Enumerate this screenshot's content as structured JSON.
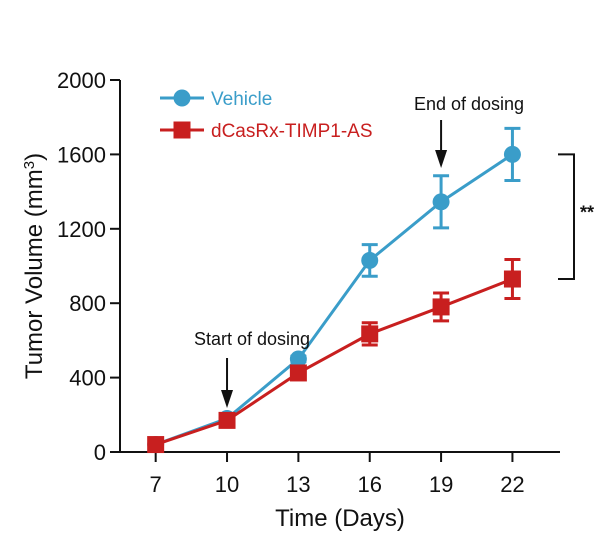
{
  "chart_data": {
    "type": "line",
    "xlabel": "Time (Days)",
    "ylabel": "Tumor Volume (mm",
    "ylabel_unit_sup": "3",
    "ylabel_close": ")",
    "x": [
      7,
      10,
      13,
      16,
      19,
      22
    ],
    "x_ticks": [
      "7",
      "10",
      "13",
      "16",
      "19",
      "22"
    ],
    "ylim": [
      0,
      2000
    ],
    "y_ticks": [
      "0",
      "400",
      "800",
      "1200",
      "1600",
      "2000"
    ],
    "y_tick_values": [
      0,
      400,
      800,
      1200,
      1600,
      2000
    ],
    "series": [
      {
        "name": "Vehicle",
        "color": "#3a9dc9",
        "marker": "circle",
        "values": [
          40,
          180,
          500,
          1030,
          1345,
          1600
        ],
        "errors": [
          18,
          25,
          15,
          85,
          140,
          140
        ]
      },
      {
        "name": "dCasRx-TIMP1-AS",
        "color": "#c81f1f",
        "marker": "square",
        "values": [
          40,
          170,
          425,
          635,
          780,
          930
        ],
        "errors": [
          18,
          25,
          30,
          60,
          75,
          105
        ]
      }
    ],
    "annotations": {
      "start": {
        "label": "Start of dosing",
        "x": 10
      },
      "end": {
        "label": "End of dosing",
        "x": 19
      },
      "significance": {
        "label": "**",
        "x": 22,
        "y_top": 1600,
        "y_bottom": 930
      }
    },
    "legend_position": "top-left"
  }
}
